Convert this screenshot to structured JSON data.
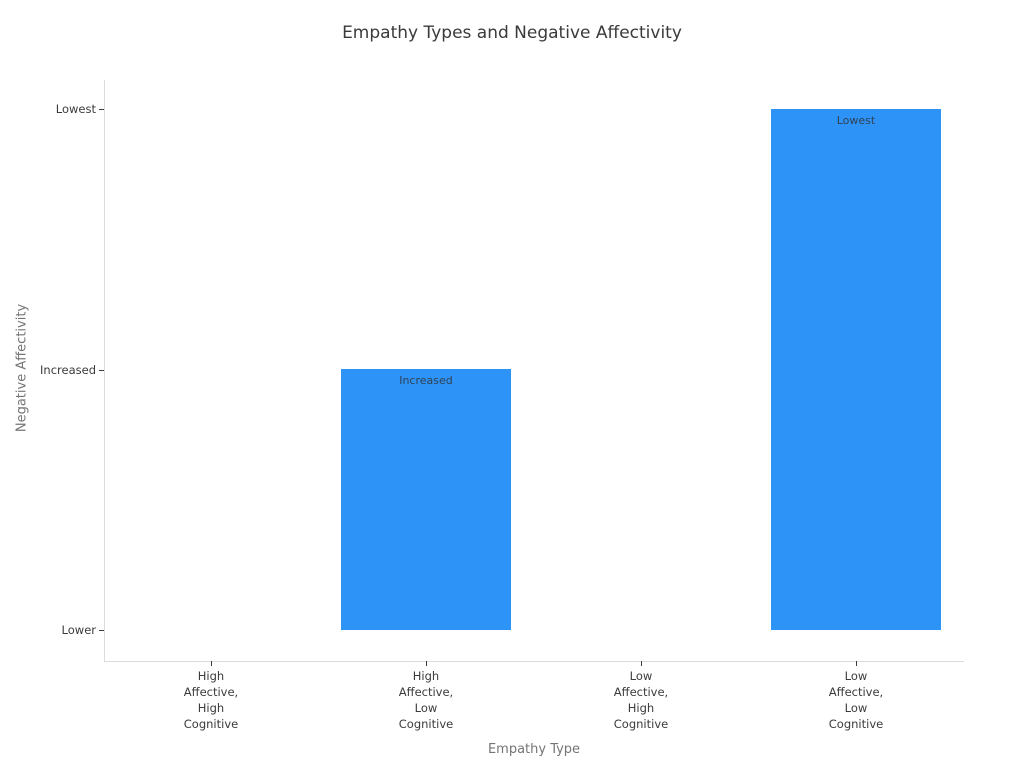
{
  "colors": {
    "background": "#ffffff",
    "bar": "#2e93f6",
    "title_text": "#3a3a3a",
    "tick_text": "#3b3b3b",
    "tick_mark": "#3b3b3b",
    "axis_title_text": "#757575",
    "axis_line": "#dbdbdb",
    "bar_label_text": "#2f4255"
  },
  "chart_data": {
    "type": "bar",
    "title": "Empathy Types and Negative Affectivity",
    "xlabel": "Empathy Type",
    "ylabel": "Negative Affectivity",
    "categories": [
      "High Affective, High Cognitive",
      "High Affective, Low Cognitive",
      "Low Affective, High Cognitive",
      "Low Affective, Low Cognitive"
    ],
    "x_tick_lines": [
      [
        "High",
        "Affective,",
        "High",
        "Cognitive"
      ],
      [
        "High",
        "Affective,",
        "Low",
        "Cognitive"
      ],
      [
        "Low",
        "Affective,",
        "High",
        "Cognitive"
      ],
      [
        "Low",
        "Affective,",
        "Low",
        "Cognitive"
      ]
    ],
    "y_categories": [
      "Lower",
      "Increased",
      "Lowest"
    ],
    "values": [
      "Lower",
      "Increased",
      "Lower",
      "Lowest"
    ],
    "values_numeric": [
      0,
      1,
      0,
      2
    ],
    "bar_labels": [
      "",
      "Increased",
      "",
      "Lowest"
    ],
    "bar_color": "#2e93f6",
    "grid": false,
    "legend": false,
    "orientation": "vertical",
    "baseline_category": "Lower"
  }
}
